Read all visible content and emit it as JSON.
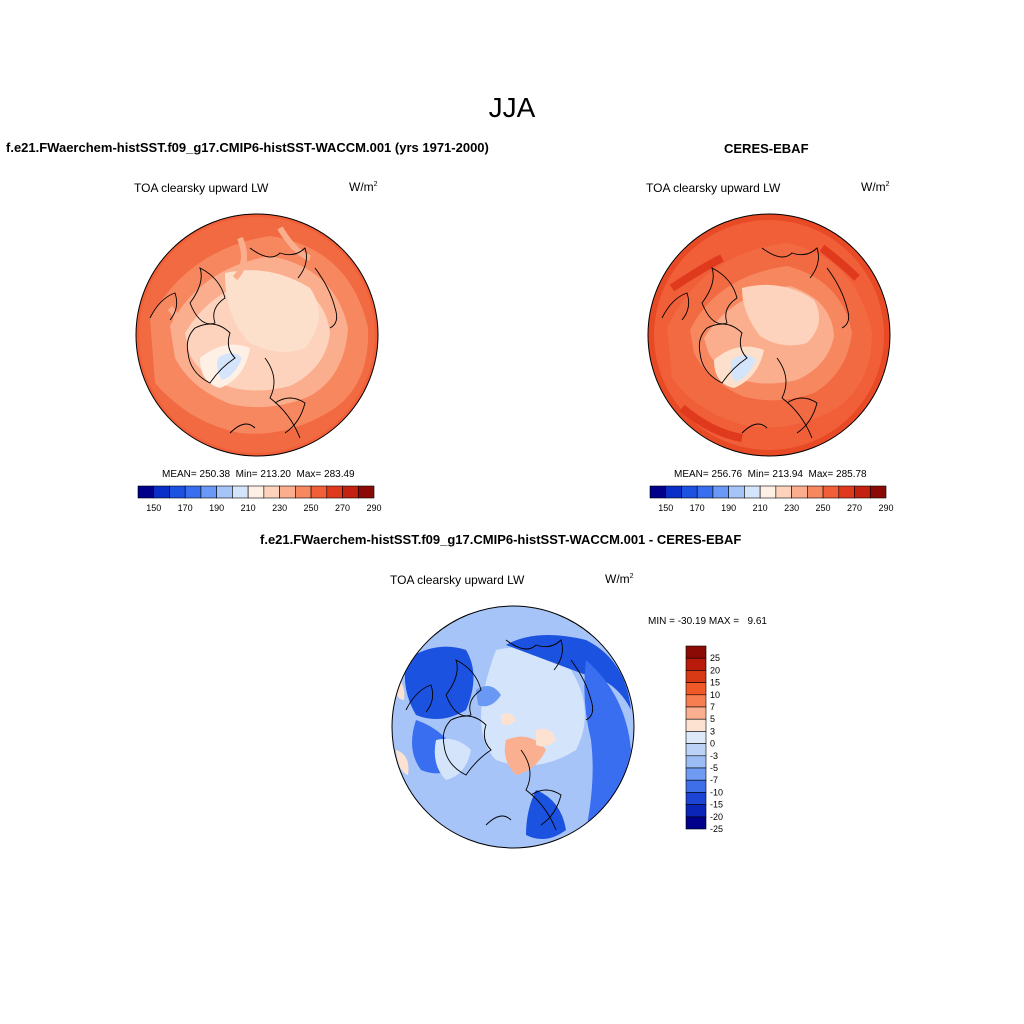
{
  "main_title": "JJA",
  "panels": [
    {
      "title": "f.e21.FWaerchem-histSST.f09_g17.CMIP6-histSST-WACCM.001 (yrs 1971-2000)",
      "variable": "TOA clearsky upward LW",
      "units_base": "W/m",
      "units_exp": "2",
      "stats": "MEAN= 250.38  Min= 213.20  Max= 283.49"
    },
    {
      "title": "CERES-EBAF",
      "variable": "TOA clearsky upward LW",
      "units_base": "W/m",
      "units_exp": "2",
      "stats": "MEAN= 256.76  Min= 213.94  Max= 285.78"
    },
    {
      "title": "f.e21.FWaerchem-histSST.f09_g17.CMIP6-histSST-WACCM.001 - CERES-EBAF",
      "variable": "TOA clearsky upward LW",
      "units_base": "W/m",
      "units_exp": "2",
      "stats": "MIN = -30.19 MAX =   9.61"
    }
  ],
  "abs_colorbar": {
    "colors": [
      "#00008b",
      "#0a2ec8",
      "#1c52e0",
      "#3a6ef0",
      "#6a98f5",
      "#a6c4f8",
      "#d4e4fb",
      "#fff0e6",
      "#fdd3bd",
      "#fbae8e",
      "#f7875f",
      "#f05f38",
      "#e03a1e",
      "#c32212",
      "#8b0a06"
    ],
    "tick_labels": [
      "150",
      "170",
      "190",
      "210",
      "230",
      "250",
      "270",
      "290"
    ]
  },
  "diff_colorbar": {
    "colors": [
      "#8b0a06",
      "#b81a0c",
      "#d83a16",
      "#f05a28",
      "#f77e50",
      "#fab090",
      "#fde2d2",
      "#dde8f8",
      "#bcd2f7",
      "#9cbcf5",
      "#6f9cf2",
      "#3f6fe8",
      "#1c45d6",
      "#0a25b8",
      "#00008b"
    ],
    "tick_labels": [
      "25",
      "20",
      "15",
      "10",
      "7",
      "5",
      "3",
      "0",
      "-3",
      "-5",
      "-7",
      "-10",
      "-15",
      "-20",
      "-25"
    ]
  }
}
